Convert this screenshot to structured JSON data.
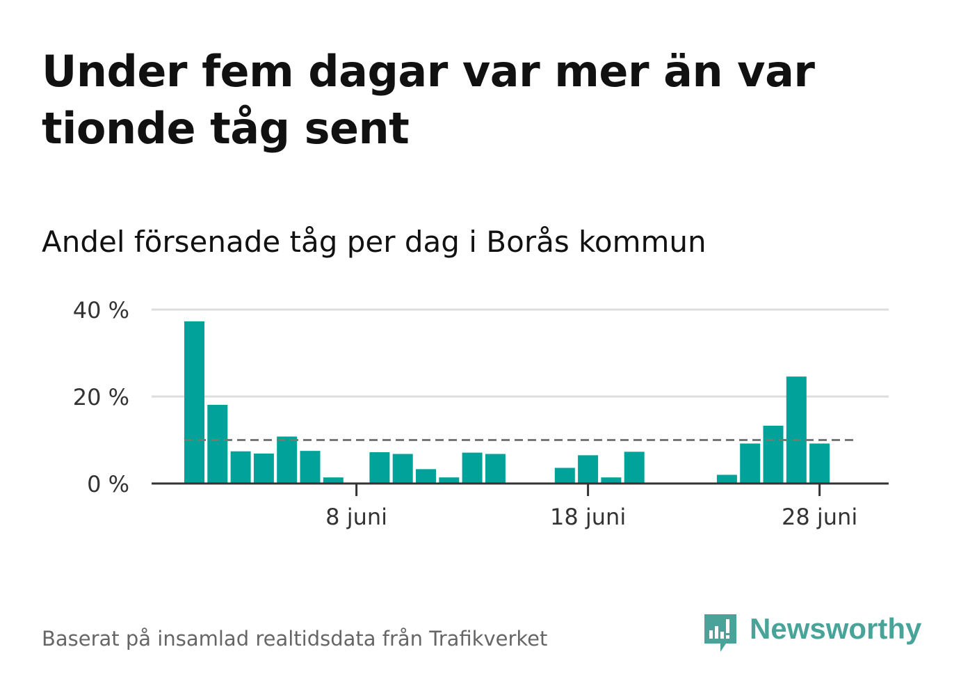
{
  "header": {
    "title": "Under fem dagar var mer än var tionde tåg sent",
    "subtitle": "Andel försenade tåg per dag i Borås kommun"
  },
  "footer": {
    "source": "Baserat på insamlad realtidsdata från Trafikverket",
    "logo_text": "Newsworthy",
    "logo_icon": "bar-chart-speech-bubble-icon"
  },
  "colors": {
    "bar": "#00a29a",
    "reference_line": "#777777",
    "grid": "#dddddd",
    "axis": "#333333",
    "brand": "#4aa399"
  },
  "chart_data": {
    "type": "bar",
    "x_start_day": 1,
    "x_month_label": "juni",
    "x": [
      1,
      2,
      3,
      4,
      5,
      6,
      7,
      8,
      9,
      10,
      11,
      12,
      13,
      14,
      15,
      16,
      17,
      18,
      19,
      20,
      21,
      22,
      23,
      24,
      25,
      26,
      27,
      28,
      29,
      30
    ],
    "values": [
      37.3,
      18.1,
      7.4,
      6.9,
      10.8,
      7.5,
      1.4,
      0,
      7.2,
      6.8,
      3.3,
      1.4,
      7.1,
      6.8,
      0,
      0,
      3.6,
      6.5,
      1.4,
      7.3,
      0,
      0,
      0,
      2.0,
      9.2,
      13.3,
      24.6,
      9.2,
      0,
      0
    ],
    "reference_line": 10,
    "ylim": [
      0,
      40
    ],
    "yticks": [
      0,
      20,
      40
    ],
    "ytick_labels": [
      "0 %",
      "20 %",
      "40 %"
    ],
    "xticks": [
      8,
      18,
      28
    ],
    "xtick_labels": [
      "8 juni",
      "18 juni",
      "28 juni"
    ],
    "grid": true,
    "legend": "none"
  }
}
